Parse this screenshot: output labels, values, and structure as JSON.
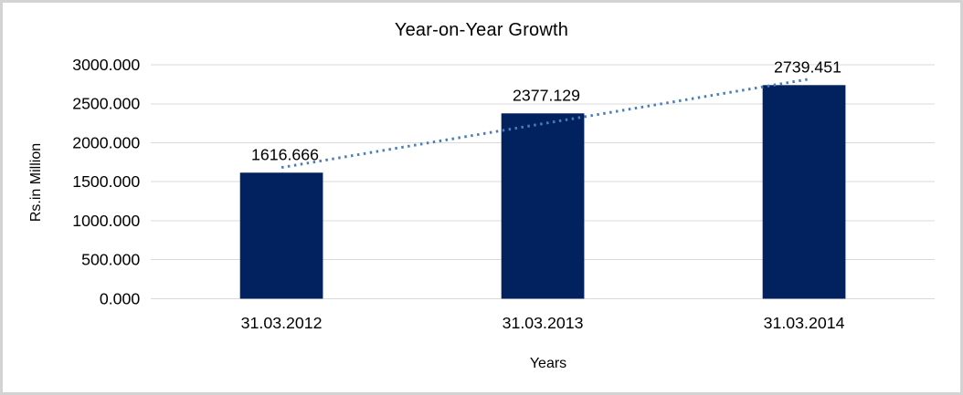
{
  "chart_data": {
    "type": "bar",
    "title": "Year-on-Year Growth",
    "xlabel": "Years",
    "ylabel": "Rs.in Million",
    "categories": [
      "31.03.2012",
      "31.03.2013",
      "31.03.2014"
    ],
    "values": [
      1616.666,
      2377.129,
      2739.451
    ],
    "data_labels": [
      "1616.666",
      "2377.129",
      "2739.451"
    ],
    "ylim": [
      0,
      3000
    ],
    "ytick_step": 500,
    "ytick_labels": [
      "0.000",
      "500.000",
      "1000.000",
      "1500.000",
      "2000.000",
      "2500.000",
      "3000.000"
    ],
    "grid": true,
    "legend": "none",
    "trendline": {
      "type": "linear",
      "style": "dotted"
    }
  },
  "colors": {
    "bar": "#02215f",
    "trendline": "#4a7ebb",
    "gridline": "#d9d9d9",
    "frame_border": "#d3d3d3",
    "text": "#000000"
  }
}
